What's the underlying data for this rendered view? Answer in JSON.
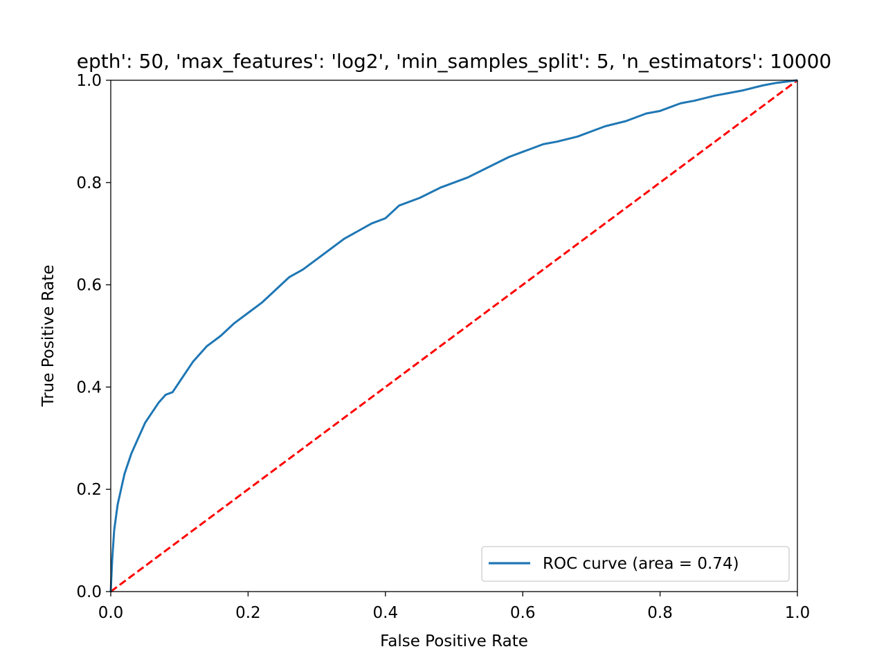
{
  "chart_data": {
    "type": "line",
    "title": "epth': 50, 'max_features': 'log2', 'min_samples_split': 5, 'n_estimators': 10000",
    "xlabel": "False Positive Rate",
    "ylabel": "True Positive Rate",
    "xlim": [
      0.0,
      1.0
    ],
    "ylim": [
      0.0,
      1.0
    ],
    "xticks": [
      "0.0",
      "0.2",
      "0.4",
      "0.6",
      "0.8",
      "1.0"
    ],
    "yticks": [
      "0.0",
      "0.2",
      "0.4",
      "0.6",
      "0.8",
      "1.0"
    ],
    "grid": false,
    "legend_position": "lower right",
    "series": [
      {
        "name": "ROC curve (area = 0.74)",
        "color": "#1f77b4",
        "style": "solid",
        "x": [
          0.0,
          0.002,
          0.005,
          0.01,
          0.015,
          0.02,
          0.03,
          0.04,
          0.045,
          0.05,
          0.06,
          0.07,
          0.08,
          0.09,
          0.1,
          0.12,
          0.14,
          0.16,
          0.18,
          0.2,
          0.22,
          0.24,
          0.26,
          0.28,
          0.3,
          0.32,
          0.34,
          0.36,
          0.38,
          0.4,
          0.42,
          0.45,
          0.48,
          0.5,
          0.52,
          0.55,
          0.58,
          0.6,
          0.63,
          0.65,
          0.68,
          0.7,
          0.72,
          0.75,
          0.78,
          0.8,
          0.83,
          0.85,
          0.88,
          0.9,
          0.92,
          0.95,
          0.97,
          1.0
        ],
        "y": [
          0.0,
          0.06,
          0.12,
          0.17,
          0.2,
          0.23,
          0.27,
          0.3,
          0.315,
          0.33,
          0.35,
          0.37,
          0.385,
          0.39,
          0.41,
          0.45,
          0.48,
          0.5,
          0.525,
          0.545,
          0.565,
          0.59,
          0.615,
          0.63,
          0.65,
          0.67,
          0.69,
          0.705,
          0.72,
          0.73,
          0.755,
          0.77,
          0.79,
          0.8,
          0.81,
          0.83,
          0.85,
          0.86,
          0.875,
          0.88,
          0.89,
          0.9,
          0.91,
          0.92,
          0.935,
          0.94,
          0.955,
          0.96,
          0.97,
          0.975,
          0.98,
          0.99,
          0.995,
          1.0
        ]
      },
      {
        "name": "",
        "color": "#ff0000",
        "style": "dashed",
        "x": [
          0.0,
          1.0
        ],
        "y": [
          0.0,
          1.0
        ]
      }
    ]
  }
}
